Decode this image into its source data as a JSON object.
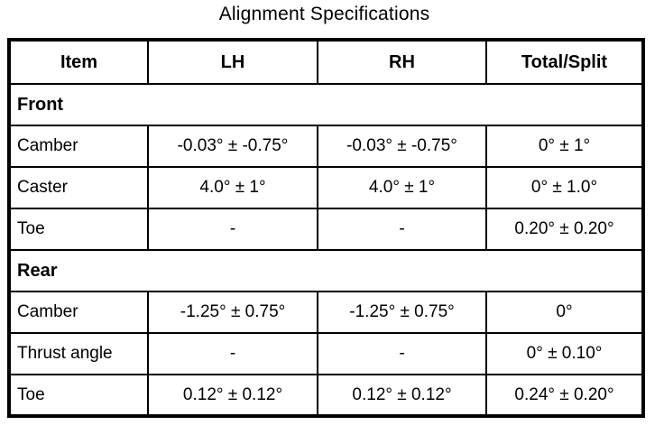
{
  "title": "Alignment Specifications",
  "colors": {
    "border": "#000000",
    "background": "#ffffff",
    "text": "#000000"
  },
  "table": {
    "headers": [
      "Item",
      "LH",
      "RH",
      "Total/Split"
    ],
    "sections": [
      {
        "label": "Front",
        "rows": [
          {
            "item": "Camber",
            "lh": "-0.03° ± -0.75°",
            "rh": "-0.03° ± -0.75°",
            "total": "0° ± 1°"
          },
          {
            "item": "Caster",
            "lh": "4.0° ± 1°",
            "rh": "4.0° ± 1°",
            "total": "0° ± 1.0°"
          },
          {
            "item": "Toe",
            "lh": "-",
            "rh": "-",
            "total": "0.20° ± 0.20°"
          }
        ]
      },
      {
        "label": "Rear",
        "rows": [
          {
            "item": "Camber",
            "lh": "-1.25° ± 0.75°",
            "rh": "-1.25° ± 0.75°",
            "total": "0°"
          },
          {
            "item": "Thrust angle",
            "lh": "-",
            "rh": "-",
            "total": "0° ± 0.10°"
          },
          {
            "item": "Toe",
            "lh": "0.12° ± 0.12°",
            "rh": "0.12° ± 0.12°",
            "total": "0.24° ± 0.20°"
          }
        ]
      }
    ]
  }
}
